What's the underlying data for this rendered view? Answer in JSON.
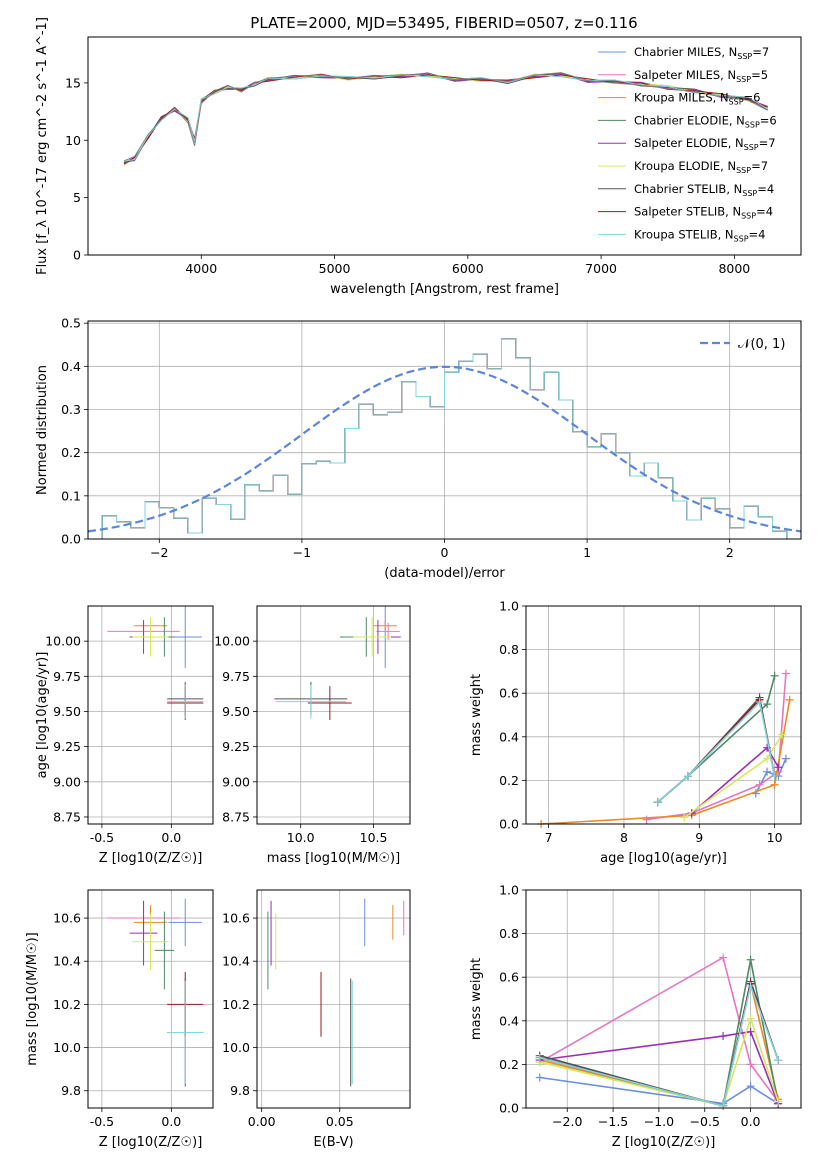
{
  "figure": {
    "title": "PLATE=2000, MJD=53495, FIBERID=0507, z=0.116"
  },
  "colors": {
    "Chabrier MILES": "#6a8fdc",
    "Salpeter MILES": "#e377c2",
    "Kroupa MILES": "#e88a2a",
    "Chabrier ELODIE": "#4e8a66",
    "Salpeter ELODIE": "#9a2fb5",
    "Kroupa ELODIE": "#d6e85a",
    "Chabrier STELIB": "#555555",
    "Salpeter STELIB": "#a01515",
    "Kroupa STELIB": "#7fd6de",
    "normal_curve": "#5b86d9",
    "grid": "#b0b0b0"
  },
  "chart_data": [
    {
      "id": "spectrum",
      "type": "line",
      "title": "PLATE=2000, MJD=53495, FIBERID=0507, z=0.116",
      "xlabel": "wavelength [Angstrom, rest frame]",
      "ylabel": "Flux [f_λ 10^-17 erg cm^-2 s^-1 A^-1]",
      "xlim": [
        3150,
        8500
      ],
      "ylim": [
        0,
        19
      ],
      "xticks": [
        4000,
        5000,
        6000,
        7000,
        8000
      ],
      "yticks": [
        0,
        5,
        10,
        15
      ],
      "grid": false,
      "legend_position": "top-right",
      "legend": [
        {
          "label": "Chabrier MILES, N",
          "sub": "SSP",
          "tail": "=7",
          "model": "Chabrier MILES"
        },
        {
          "label": "Salpeter MILES, N",
          "sub": "SSP",
          "tail": "=5",
          "model": "Salpeter MILES"
        },
        {
          "label": "Kroupa MILES, N",
          "sub": "SSP",
          "tail": "=6",
          "model": "Kroupa MILES"
        },
        {
          "label": "Chabrier ELODIE, N",
          "sub": "SSP",
          "tail": "=6",
          "model": "Chabrier ELODIE"
        },
        {
          "label": "Salpeter ELODIE, N",
          "sub": "SSP",
          "tail": "=7",
          "model": "Salpeter ELODIE"
        },
        {
          "label": "Kroupa ELODIE, N",
          "sub": "SSP",
          "tail": "=7",
          "model": "Kroupa ELODIE"
        },
        {
          "label": "Chabrier STELIB, N",
          "sub": "SSP",
          "tail": "=4",
          "model": "Chabrier STELIB"
        },
        {
          "label": "Salpeter STELIB, N",
          "sub": "SSP",
          "tail": "=4",
          "model": "Salpeter STELIB"
        },
        {
          "label": "Kroupa STELIB, N",
          "sub": "SSP",
          "tail": "=4",
          "model": "Kroupa STELIB"
        }
      ],
      "data_series": {
        "name": "data",
        "x": [
          3420,
          3500,
          3600,
          3700,
          3800,
          3900,
          3950,
          4000,
          4100,
          4200,
          4300,
          4400,
          4500,
          4700,
          4900,
          5100,
          5300,
          5500,
          5700,
          5900,
          6100,
          6300,
          6500,
          6700,
          6900,
          7100,
          7300,
          7500,
          7700,
          7900,
          8100,
          8250
        ],
        "y": [
          8.2,
          8.6,
          10.5,
          11.8,
          12.8,
          11.5,
          9.5,
          13.2,
          14.3,
          14.8,
          14.2,
          15.0,
          15.4,
          15.6,
          15.7,
          15.4,
          15.6,
          15.7,
          15.8,
          15.3,
          15.4,
          15.1,
          15.7,
          15.9,
          15.2,
          15.0,
          14.8,
          14.5,
          14.2,
          13.8,
          13.5,
          12.6
        ]
      },
      "model_series": {
        "x": [
          3420,
          3500,
          3600,
          3700,
          3800,
          3900,
          3950,
          4000,
          4100,
          4200,
          4300,
          4400,
          4500,
          4700,
          4900,
          5100,
          5300,
          5500,
          5700,
          5900,
          6100,
          6300,
          6500,
          6700,
          6900,
          7100,
          7300,
          7500,
          7700,
          7900,
          8100,
          8250
        ],
        "y": [
          8.0,
          8.4,
          10.3,
          11.9,
          12.7,
          11.8,
          10.0,
          13.5,
          14.2,
          14.6,
          14.4,
          14.9,
          15.3,
          15.5,
          15.6,
          15.4,
          15.5,
          15.6,
          15.7,
          15.3,
          15.3,
          15.1,
          15.6,
          15.7,
          15.2,
          15.1,
          14.9,
          14.6,
          14.3,
          13.9,
          13.6,
          12.8
        ]
      }
    },
    {
      "id": "residuals",
      "type": "line",
      "xlabel": "(data-model)/error",
      "ylabel": "Normed distribution",
      "xlim": [
        -2.5,
        2.5
      ],
      "ylim": [
        0,
        0.505
      ],
      "xticks": [
        -2,
        -1,
        0,
        1,
        2
      ],
      "yticks": [
        0.0,
        0.1,
        0.2,
        0.3,
        0.4,
        0.5
      ],
      "grid": true,
      "legend_position": "top-right",
      "curve_label": "𝒩(0, 1)",
      "bin_width": 0.1,
      "bin_start": -2.5,
      "histogram": [
        0.02,
        0.03,
        0.04,
        0.05,
        0.05,
        0.06,
        0.06,
        0.05,
        0.07,
        0.08,
        0.07,
        0.09,
        0.1,
        0.16,
        0.14,
        0.15,
        0.18,
        0.2,
        0.22,
        0.3,
        0.3,
        0.33,
        0.34,
        0.33,
        0.33,
        0.35,
        0.4,
        0.44,
        0.43,
        0.44,
        0.42,
        0.37,
        0.35,
        0.31,
        0.26,
        0.25,
        0.22,
        0.2,
        0.17,
        0.14,
        0.13,
        0.1,
        0.08,
        0.07,
        0.07,
        0.05,
        0.04,
        0.04,
        0.03,
        0.03
      ]
    },
    {
      "id": "age_vs_Z",
      "type": "scatter",
      "xlabel": "Z [log10(Z/Z☉)]",
      "ylabel": "age  [log10(age/yr)]",
      "xlim": [
        -0.6,
        0.3
      ],
      "ylim": [
        8.7,
        10.25
      ],
      "xticks": [
        -0.5,
        0.0
      ],
      "yticks": [
        8.75,
        9.0,
        9.25,
        9.5,
        9.75,
        10.0
      ],
      "grid": true
    },
    {
      "id": "age_vs_mass",
      "type": "scatter",
      "xlabel": "mass [log10(M/M☉)]",
      "xlim": [
        9.7,
        10.75
      ],
      "ylim": [
        8.7,
        10.25
      ],
      "xticks": [
        10.0,
        10.5
      ],
      "yticks": [
        8.75,
        9.0,
        9.25,
        9.5,
        9.75,
        10.0
      ],
      "grid": true
    },
    {
      "id": "weight_vs_age",
      "type": "line",
      "xlabel": "age  [log10(age/yr)]",
      "ylabel": "mass weight",
      "xlim": [
        6.7,
        10.35
      ],
      "ylim": [
        0,
        1.0
      ],
      "xticks": [
        7,
        8,
        9,
        10
      ],
      "yticks": [
        0.0,
        0.2,
        0.4,
        0.6,
        0.8,
        1.0
      ],
      "grid": true
    },
    {
      "id": "mass_vs_Z",
      "type": "scatter",
      "xlabel": "Z [log10(Z/Z☉)]",
      "ylabel": "mass [log10(M/M☉)]",
      "xlim": [
        -0.6,
        0.3
      ],
      "ylim": [
        9.72,
        10.73
      ],
      "xticks": [
        -0.5,
        0.0
      ],
      "yticks": [
        9.8,
        10.0,
        10.2,
        10.4,
        10.6
      ],
      "grid": true
    },
    {
      "id": "mass_vs_EBV",
      "type": "scatter",
      "xlabel": "E(B-V)",
      "xlim": [
        -0.003,
        0.095
      ],
      "ylim": [
        9.72,
        10.73
      ],
      "xticks": [
        0.0,
        0.05
      ],
      "yticks": [
        9.8,
        10.0,
        10.2,
        10.4,
        10.6
      ],
      "grid": true
    },
    {
      "id": "weight_vs_Z",
      "type": "line",
      "xlabel": "Z [log10(Z/Z☉)]",
      "ylabel": "mass weight",
      "xlim": [
        -2.45,
        0.55
      ],
      "ylim": [
        0,
        1.0
      ],
      "xticks": [
        -2.0,
        -1.5,
        -1.0,
        -0.5,
        0.0
      ],
      "yticks": [
        0.0,
        0.2,
        0.4,
        0.6,
        0.8,
        1.0
      ],
      "grid": true
    }
  ],
  "fits": [
    {
      "model": "Chabrier MILES",
      "Z": 0.1,
      "Z_err": 0.12,
      "age": 10.03,
      "age_err": 0.22,
      "mass": 10.58,
      "mass_err": 0.11,
      "ebv": 0.066,
      "ebv_err": 0.0,
      "age_weights": [
        [
          9.75,
          0.14
        ],
        [
          9.9,
          0.24
        ],
        [
          10.05,
          0.22
        ],
        [
          10.15,
          0.3
        ]
      ],
      "Z_weights": [
        [
          -2.3,
          0.14
        ],
        [
          -0.3,
          0.02
        ],
        [
          0.0,
          0.1
        ],
        [
          0.3,
          0.02
        ]
      ]
    },
    {
      "model": "Salpeter MILES",
      "Z": -0.2,
      "Z_err": 0.26,
      "age": 10.07,
      "age_err": 0.06,
      "mass": 10.6,
      "mass_err": 0.08,
      "ebv": 0.091,
      "ebv_err": 0.0,
      "age_weights": [
        [
          8.3,
          0.02
        ],
        [
          8.9,
          0.05
        ],
        [
          9.8,
          0.18
        ],
        [
          10.05,
          0.24
        ],
        [
          10.15,
          0.69
        ]
      ],
      "Z_weights": [
        [
          -2.3,
          0.21
        ],
        [
          -0.3,
          0.69
        ],
        [
          0.0,
          0.2
        ],
        [
          0.3,
          0.03
        ]
      ]
    },
    {
      "model": "Kroupa MILES",
      "Z": -0.15,
      "Z_err": 0.12,
      "age": 10.11,
      "age_err": 0.03,
      "mass": 10.58,
      "mass_err": 0.08,
      "ebv": 0.084,
      "ebv_err": 0.0,
      "age_weights": [
        [
          6.9,
          0.0
        ],
        [
          8.9,
          0.04
        ],
        [
          10.0,
          0.18
        ],
        [
          10.2,
          0.57
        ]
      ],
      "Z_weights": [
        [
          -2.3,
          0.22
        ],
        [
          -0.3,
          0.01
        ],
        [
          0.0,
          0.57
        ],
        [
          0.3,
          0.04
        ]
      ]
    },
    {
      "model": "Chabrier ELODIE",
      "Z": -0.05,
      "Z_err": 0.07,
      "age": 10.03,
      "age_err": 0.14,
      "mass": 10.45,
      "mass_err": 0.18,
      "ebv": 0.004,
      "ebv_err": 0.0,
      "age_weights": [
        [
          8.45,
          0.1
        ],
        [
          8.85,
          0.22
        ],
        [
          9.9,
          0.55
        ],
        [
          10.0,
          0.68
        ]
      ],
      "Z_weights": [
        [
          -2.3,
          0.23
        ],
        [
          -0.3,
          0.01
        ],
        [
          0.0,
          0.68
        ],
        [
          0.3,
          0.02
        ]
      ]
    },
    {
      "model": "Salpeter ELODIE",
      "Z": -0.2,
      "Z_err": 0.1,
      "age": 10.03,
      "age_err": 0.12,
      "mass": 10.53,
      "mass_err": 0.15,
      "ebv": 0.006,
      "ebv_err": 0.0,
      "age_weights": [
        [
          8.9,
          0.05
        ],
        [
          9.9,
          0.35
        ],
        [
          10.05,
          0.26
        ]
      ],
      "Z_weights": [
        [
          -2.3,
          0.22
        ],
        [
          -0.3,
          0.33
        ],
        [
          0.0,
          0.35
        ],
        [
          0.3,
          0.02
        ]
      ]
    },
    {
      "model": "Kroupa ELODIE",
      "Z": -0.15,
      "Z_err": 0.13,
      "age": 10.03,
      "age_err": 0.14,
      "mass": 10.49,
      "mass_err": 0.13,
      "ebv": 0.009,
      "ebv_err": 0.0,
      "age_weights": [
        [
          8.8,
          0.03
        ],
        [
          9.9,
          0.3
        ],
        [
          10.1,
          0.41
        ]
      ],
      "Z_weights": [
        [
          -2.3,
          0.21
        ],
        [
          -0.3,
          0.01
        ],
        [
          0.0,
          0.41
        ],
        [
          0.3,
          0.03
        ]
      ]
    },
    {
      "model": "Chabrier STELIB",
      "Z": 0.1,
      "Z_err": 0.13,
      "age": 9.59,
      "age_err": 0.0,
      "mass": 10.07,
      "mass_err": 0.25,
      "ebv": 0.057,
      "ebv_err": 0.0,
      "age_weights": [
        [
          8.45,
          0.1
        ],
        [
          8.85,
          0.22
        ],
        [
          9.8,
          0.58
        ],
        [
          10.0,
          0.22
        ]
      ],
      "Z_weights": [
        [
          -2.3,
          0.24
        ],
        [
          -0.3,
          0.01
        ],
        [
          0.0,
          0.58
        ],
        [
          0.3,
          0.22
        ]
      ]
    },
    {
      "model": "Salpeter STELIB",
      "Z": 0.1,
      "Z_err": 0.13,
      "age": 9.56,
      "age_err": 0.0,
      "mass": 10.2,
      "mass_err": 0.15,
      "ebv": 0.038,
      "ebv_err": 0.0,
      "age_weights": [
        [
          8.45,
          0.1
        ],
        [
          8.85,
          0.22
        ],
        [
          9.8,
          0.57
        ],
        [
          10.0,
          0.22
        ]
      ],
      "Z_weights": [
        [
          -2.3,
          0.23
        ],
        [
          -0.3,
          0.01
        ],
        [
          0.0,
          0.57
        ],
        [
          0.3,
          0.22
        ]
      ]
    },
    {
      "model": "Kroupa STELIB",
      "Z": 0.1,
      "Z_err": 0.13,
      "age": 9.57,
      "age_err": 0.0,
      "mass": 10.07,
      "mass_err": 0.24,
      "ebv": 0.058,
      "ebv_err": 0.0,
      "age_weights": [
        [
          8.45,
          0.1
        ],
        [
          8.85,
          0.22
        ],
        [
          9.8,
          0.56
        ],
        [
          10.0,
          0.22
        ]
      ],
      "Z_weights": [
        [
          -2.3,
          0.23
        ],
        [
          -0.3,
          0.01
        ],
        [
          0.0,
          0.56
        ],
        [
          0.3,
          0.22
        ]
      ]
    }
  ]
}
